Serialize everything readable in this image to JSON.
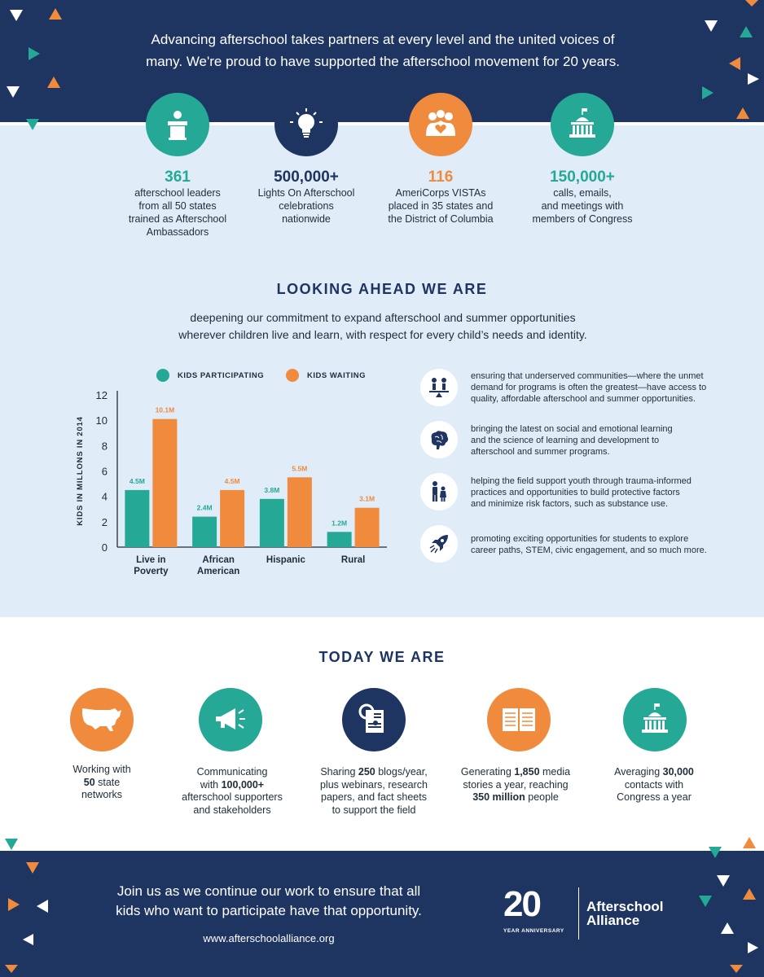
{
  "header": {
    "intro_line1": "Advancing afterschool takes partners at every level and the united voices of",
    "intro_line2": "many. We're proud to have supported the afterschool movement for 20 years."
  },
  "stats": [
    {
      "number": "361",
      "line1": "afterschool leaders",
      "line2": "from all 50 states",
      "line3": "trained as Afterschool",
      "line4": "Ambassadors",
      "icon": "podium-icon"
    },
    {
      "number": "500,000+",
      "line1": "Lights On Afterschool",
      "line2": "celebrations",
      "line3": "nationwide",
      "icon": "lightbulb-icon"
    },
    {
      "number": "116",
      "line1": "AmeriCorps VISTAs",
      "line2": "placed in 35 states and",
      "line3": "the District of Columbia",
      "icon": "people-heart-icon"
    },
    {
      "number": "150,000+",
      "line1": "calls, emails,",
      "line2": "and meetings with",
      "line3": "members of Congress",
      "icon": "capitol-icon"
    }
  ],
  "looking_ahead": {
    "title": "LOOKING AHEAD WE ARE",
    "desc_line1": "deepening our commitment to expand afterschool and summer opportunities",
    "desc_line2": "wherever children live and learn, with respect for every child’s needs and identity."
  },
  "chart_data": {
    "type": "bar",
    "ylabel": "KIDS IN MILLONS IN 2014",
    "ylim": [
      0,
      12
    ],
    "yticks": [
      "0",
      "2",
      "4",
      "6",
      "8",
      "10",
      "12"
    ],
    "categories": [
      [
        "Live in",
        "Poverty"
      ],
      [
        "African",
        "American"
      ],
      [
        "Hispanic"
      ],
      [
        "Rural"
      ]
    ],
    "series": [
      {
        "name": "KIDS PARTICIPATING",
        "color": "#25a896",
        "values": [
          4.5,
          2.4,
          3.8,
          1.2
        ],
        "labels": [
          "4.5M",
          "2.4M",
          "3.8M",
          "1.2M"
        ]
      },
      {
        "name": "KIDS WAITING",
        "color": "#f08a3d",
        "values": [
          10.1,
          4.5,
          5.5,
          3.1
        ],
        "labels": [
          "10.1M",
          "4.5M",
          "5.5M",
          "3.1M"
        ]
      }
    ],
    "legend_position": "top"
  },
  "bullets": [
    {
      "icon": "balance-people-icon",
      "line1": "ensuring that underserved communities—where the unmet",
      "line2": "demand for programs is often the greatest—have access to",
      "line3": "quality, affordable afterschool and summer opportunities."
    },
    {
      "icon": "brain-icon",
      "line1": "bringing the latest on social and emotional learning",
      "line2": "and the science of learning and development to",
      "line3": "afterschool and summer programs."
    },
    {
      "icon": "family-icon",
      "line1": "helping the field support youth through trauma-informed",
      "line2": "practices and opportunities to build protective factors",
      "line3": "and minimize risk factors, such as substance use."
    },
    {
      "icon": "rocket-icon",
      "line1": "promoting exciting opportunities for students to explore",
      "line2": "career paths, STEM, civic engagement, and so much more."
    }
  ],
  "today": {
    "title": "TODAY WE ARE",
    "items": [
      {
        "icon": "usa-map-icon",
        "a": "Working with",
        "b": "50",
        "c": " state",
        "d": "networks"
      },
      {
        "icon": "megaphone-icon",
        "a": "Communicating",
        "b1": "with ",
        "b": "100,000+",
        "c": "afterschool supporters",
        "d": "and stakeholders"
      },
      {
        "icon": "research-icon",
        "a1": "Sharing ",
        "a": "250",
        "a2": " blogs/year,",
        "b": "plus webinars, research",
        "c": "papers, and fact sheets",
        "d": "to support the field"
      },
      {
        "icon": "book-icon",
        "a1": "Generating ",
        "a": "1,850",
        "a2": " media",
        "b": "stories a year, reaching",
        "c": "350 million",
        "d": " people"
      },
      {
        "icon": "capitol-icon",
        "a1": "Averaging ",
        "a": "30,000",
        "b": "contacts with",
        "c": "Congress a year"
      }
    ]
  },
  "footer": {
    "join_line1": "Join us as we continue our work to ensure that all",
    "join_line2": "kids who want to participate have that opportunity.",
    "url": "www.afterschoolalliance.org",
    "logo_number": "20",
    "logo_anniversary": "YEAR ANNIVERSARY",
    "logo_name_line1": "Afterschool",
    "logo_name_line2": "Alliance"
  },
  "colors": {
    "navy": "#1e3461",
    "teal": "#25a896",
    "orange": "#f08a3d",
    "light_blue": "#e0edf8"
  }
}
